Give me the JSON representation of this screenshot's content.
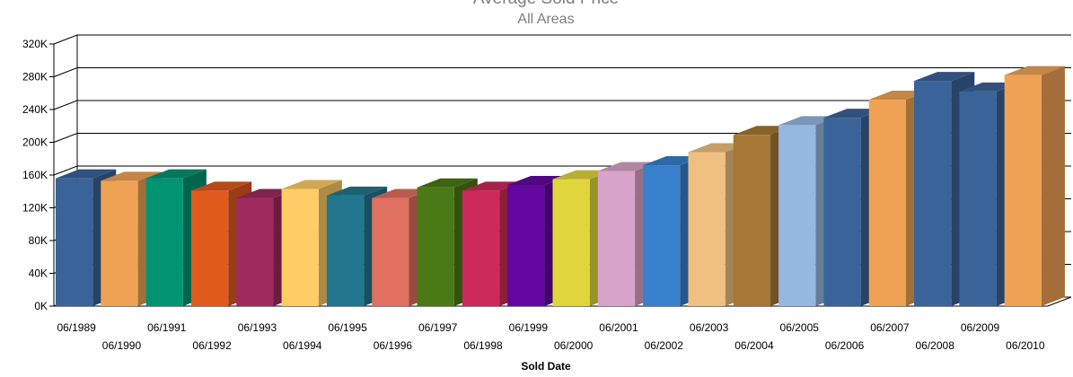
{
  "chart_data": {
    "type": "bar",
    "title": "Average Sold Price",
    "subtitle": "All Areas",
    "xlabel": "Sold Date",
    "ylabel": "",
    "ylim": [
      0,
      320000
    ],
    "yticks": [
      0,
      40000,
      80000,
      120000,
      160000,
      200000,
      240000,
      280000,
      320000
    ],
    "ytick_labels": [
      "0K",
      "40K",
      "80K",
      "120K",
      "160K",
      "200K",
      "240K",
      "280K",
      "320K"
    ],
    "grid": true,
    "legend": "none",
    "categories": [
      "06/1989",
      "06/1990",
      "06/1991",
      "06/1992",
      "06/1993",
      "06/1994",
      "06/1995",
      "06/1996",
      "06/1997",
      "06/1998",
      "06/1999",
      "06/2000",
      "06/2001",
      "06/2002",
      "06/2003",
      "06/2004",
      "06/2005",
      "06/2006",
      "06/2007",
      "06/2008",
      "06/2009",
      "06/2010"
    ],
    "values": [
      156000,
      153000,
      156000,
      141000,
      132000,
      143000,
      135000,
      132000,
      145000,
      141000,
      148000,
      155000,
      165000,
      172000,
      188000,
      209000,
      221000,
      230000,
      252000,
      275000,
      262000,
      282000
    ],
    "colors": [
      "#3A6399",
      "#F0A254",
      "#009473",
      "#E05A1E",
      "#9E2A5E",
      "#FFCC66",
      "#22778E",
      "#E07060",
      "#4A7A15",
      "#CC2A5A",
      "#63079E",
      "#E0D63C",
      "#D8A3C8",
      "#3880CC",
      "#F0C080",
      "#A67835",
      "#95B8E0",
      "#3A6399",
      "#F0A254",
      "#3A6399",
      "#3A6399",
      "#F0A254"
    ]
  }
}
